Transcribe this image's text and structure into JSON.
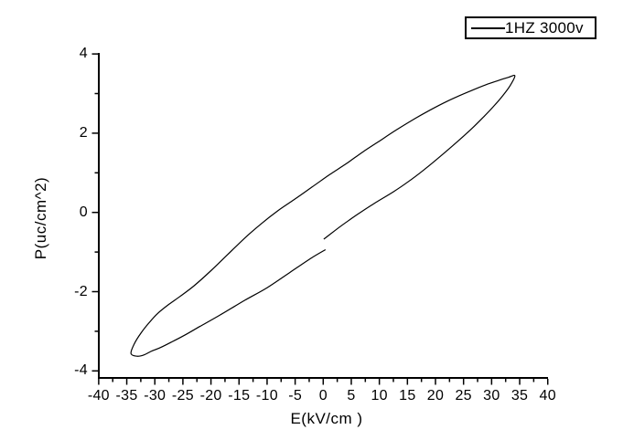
{
  "figure": {
    "background": "#ffffff",
    "axis_color": "#000000"
  },
  "chart_data": {
    "type": "line",
    "title": "",
    "xlabel": "E(kV/cm )",
    "ylabel": "P(uc/cm^2)",
    "xlim": [
      -40,
      40
    ],
    "ylim": [
      -4,
      4
    ],
    "x_major_ticks": [
      -40,
      -35,
      -30,
      -25,
      -20,
      -15,
      -10,
      -5,
      0,
      5,
      10,
      15,
      20,
      25,
      30,
      35,
      40
    ],
    "x_minor_per_major": 1,
    "y_major_ticks": [
      -4,
      -2,
      0,
      2,
      4
    ],
    "y_minor_per_major": 1,
    "grid": false,
    "legend_position": "top-right",
    "series": [
      {
        "name": "1HZ 3000v",
        "color": "#000000",
        "line_width": 1,
        "description": "single open hysteresis loop cycle, P vs E",
        "points": [
          [
            0.1,
            -0.675
          ],
          [
            3,
            -0.36
          ],
          [
            6,
            -0.06
          ],
          [
            9,
            0.22
          ],
          [
            12.5,
            0.52
          ],
          [
            15,
            0.76
          ],
          [
            18,
            1.08
          ],
          [
            21,
            1.43
          ],
          [
            24,
            1.8
          ],
          [
            26.5,
            2.12
          ],
          [
            28.5,
            2.4
          ],
          [
            30.5,
            2.7
          ],
          [
            32,
            2.95
          ],
          [
            33.3,
            3.2
          ],
          [
            34.15,
            3.45
          ],
          [
            33,
            3.41
          ],
          [
            31.2,
            3.33
          ],
          [
            29.3,
            3.24
          ],
          [
            27,
            3.11
          ],
          [
            24.5,
            2.96
          ],
          [
            22,
            2.8
          ],
          [
            19,
            2.58
          ],
          [
            16,
            2.34
          ],
          [
            13,
            2.08
          ],
          [
            10,
            1.8
          ],
          [
            7,
            1.52
          ],
          [
            4,
            1.22
          ],
          [
            1,
            0.94
          ],
          [
            -2,
            0.64
          ],
          [
            -5,
            0.34
          ],
          [
            -8,
            0.05
          ],
          [
            -11,
            -0.28
          ],
          [
            -14,
            -0.65
          ],
          [
            -17,
            -1.06
          ],
          [
            -20,
            -1.47
          ],
          [
            -23,
            -1.85
          ],
          [
            -25.5,
            -2.12
          ],
          [
            -27.5,
            -2.32
          ],
          [
            -29.5,
            -2.55
          ],
          [
            -31,
            -2.78
          ],
          [
            -32.5,
            -3.05
          ],
          [
            -33.7,
            -3.33
          ],
          [
            -34.25,
            -3.565
          ],
          [
            -33.2,
            -3.63
          ],
          [
            -32,
            -3.6
          ],
          [
            -30.7,
            -3.51
          ],
          [
            -29,
            -3.41
          ],
          [
            -27,
            -3.27
          ],
          [
            -24.7,
            -3.1
          ],
          [
            -22,
            -2.88
          ],
          [
            -18.5,
            -2.6
          ],
          [
            -14,
            -2.22
          ],
          [
            -10,
            -1.9
          ],
          [
            -6,
            -1.52
          ],
          [
            -2.2,
            -1.16
          ],
          [
            0.4,
            -0.94
          ]
        ]
      }
    ]
  },
  "legend": {
    "items": [
      {
        "label": "1HZ 3000v",
        "line_color": "#000000"
      }
    ]
  }
}
